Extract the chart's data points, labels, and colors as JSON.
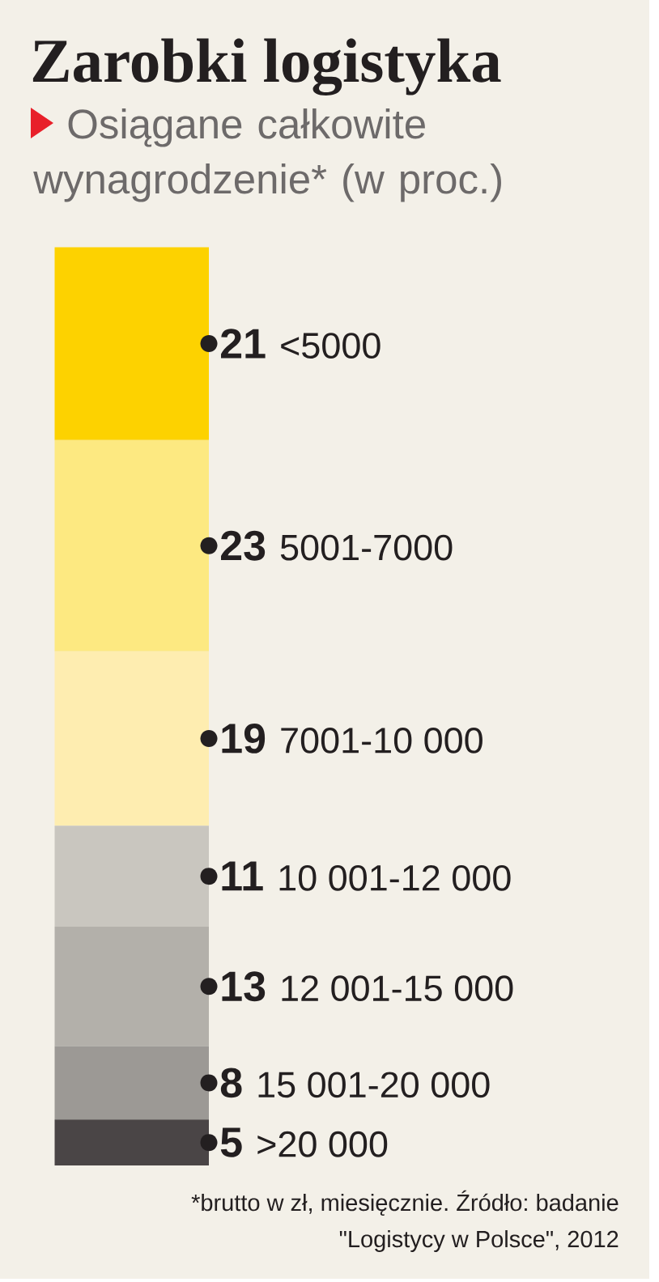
{
  "chart_data": {
    "type": "bar",
    "stacked": true,
    "title": "Zarobki logistyka",
    "subtitle": "Osiągane całkowite wynagrodzenie* (w proc.)",
    "categories": [
      null
    ],
    "series": [
      {
        "name": ">20 000",
        "color": "#4a4546",
        "values": [
          5
        ]
      },
      {
        "name": "15 001-20 000",
        "color": "#9c9995",
        "values": [
          8
        ]
      },
      {
        "name": "12 001-15 000",
        "color": "#b3b0aa",
        "values": [
          13
        ]
      },
      {
        "name": "10 001-12 000",
        "color": "#c9c6bf",
        "values": [
          11
        ]
      },
      {
        "name": "7001-10 000",
        "color": "#feedb0",
        "values": [
          19
        ]
      },
      {
        "name": "5001-7000",
        "color": "#fde981",
        "values": [
          23
        ]
      },
      {
        "name": "<5000",
        "color": "#fdd200",
        "values": [
          21
        ]
      }
    ],
    "data_labels": true,
    "annotations": [
      "*brutto w zł, miesięcznie. Źródło: badanie \"Logistycy w Polsce\", 2012"
    ]
  }
}
